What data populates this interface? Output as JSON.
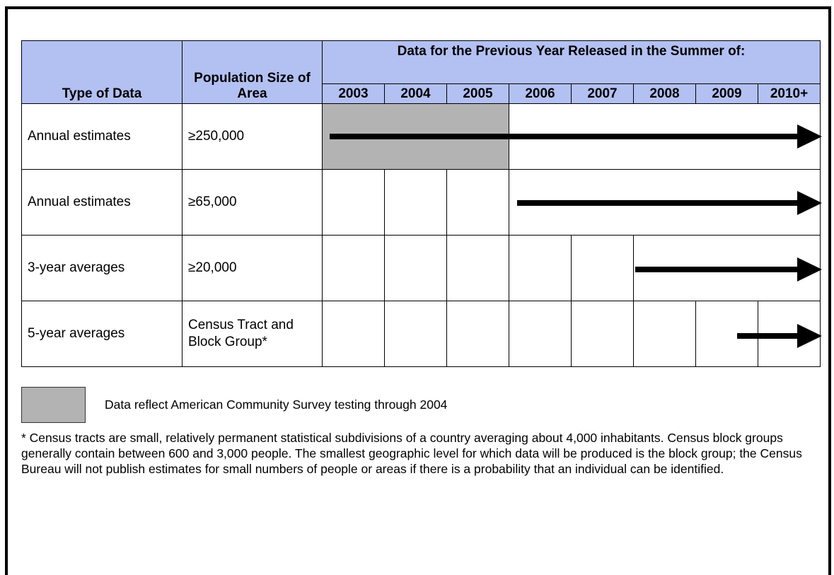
{
  "table": {
    "headers": {
      "type": "Type of Data",
      "population": "Population Size of Area",
      "span": "Data for the Previous Year Released in the Summer of:",
      "years": [
        "2003",
        "2004",
        "2005",
        "2006",
        "2007",
        "2008",
        "2009",
        "2010+"
      ]
    },
    "rows": [
      [
        "Annual estimates",
        "≥250,000"
      ],
      [
        "Annual estimates",
        "≥65,000"
      ],
      [
        "3-year averages",
        "≥20,000"
      ],
      [
        "5-year averages",
        "Census Tract and Block Group*"
      ]
    ]
  },
  "legend": {
    "text": "Data reflect American Community Survey testing through 2004"
  },
  "footnote": "* Census tracts are small, relatively permanent statistical subdivisions of a country averaging about 4,000 inhabitants. Census block groups generally contain between 600 and 3,000 people. The smallest geographic level for which data will be produced is the block group; the Census Bureau will not publish estimates for small numbers of people or areas if there is a probability that an individual can be identified."
}
